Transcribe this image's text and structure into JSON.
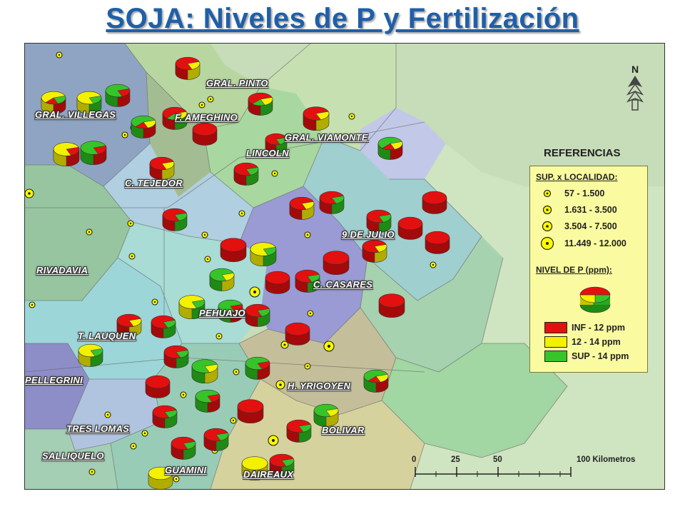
{
  "title": "SOJA: Niveles de P y Fertilización",
  "colors": {
    "inf": "#e31010",
    "mid": "#f3f000",
    "sup": "#36c42a",
    "legend_bg": "#fafaa0",
    "title": "#1f5fa8"
  },
  "localities": [
    "GRAL. PINTO",
    "GRAL. VILLEGAS",
    "F. AMEGHINO",
    "GRAL. VIAMONTE",
    "LINCOLN",
    "C. TEJEDOR",
    "9 DE JULIO",
    "RIVADAVIA",
    "C. CASARES",
    "PEHUAJO",
    "T. LAUQUEN",
    "PELLEGRINI",
    "H. YRIGOYEN",
    "TRES LOMAS",
    "BOLIVAR",
    "SALLIQUELO",
    "GUAMINI",
    "DAIREAUX"
  ],
  "legend": {
    "title": "REFERENCIAS",
    "sup_heading": "SUP. x LOCALIDAD:",
    "sup_ranges": [
      "57 - 1.500",
      "1.631 - 3.500",
      "3.504 - 7.500",
      "11.449 - 12.000"
    ],
    "p_heading": "NIVEL DE P (ppm):",
    "p_levels": [
      {
        "label": "INF - 12 ppm",
        "color": "#e31010"
      },
      {
        "label": "12 - 14 ppm",
        "color": "#f3f000"
      },
      {
        "label": "SUP - 14 ppm",
        "color": "#36c42a"
      }
    ]
  },
  "scale": {
    "ticks": [
      "0",
      "25",
      "50",
      "100 Kilometros"
    ]
  },
  "north": "N"
}
